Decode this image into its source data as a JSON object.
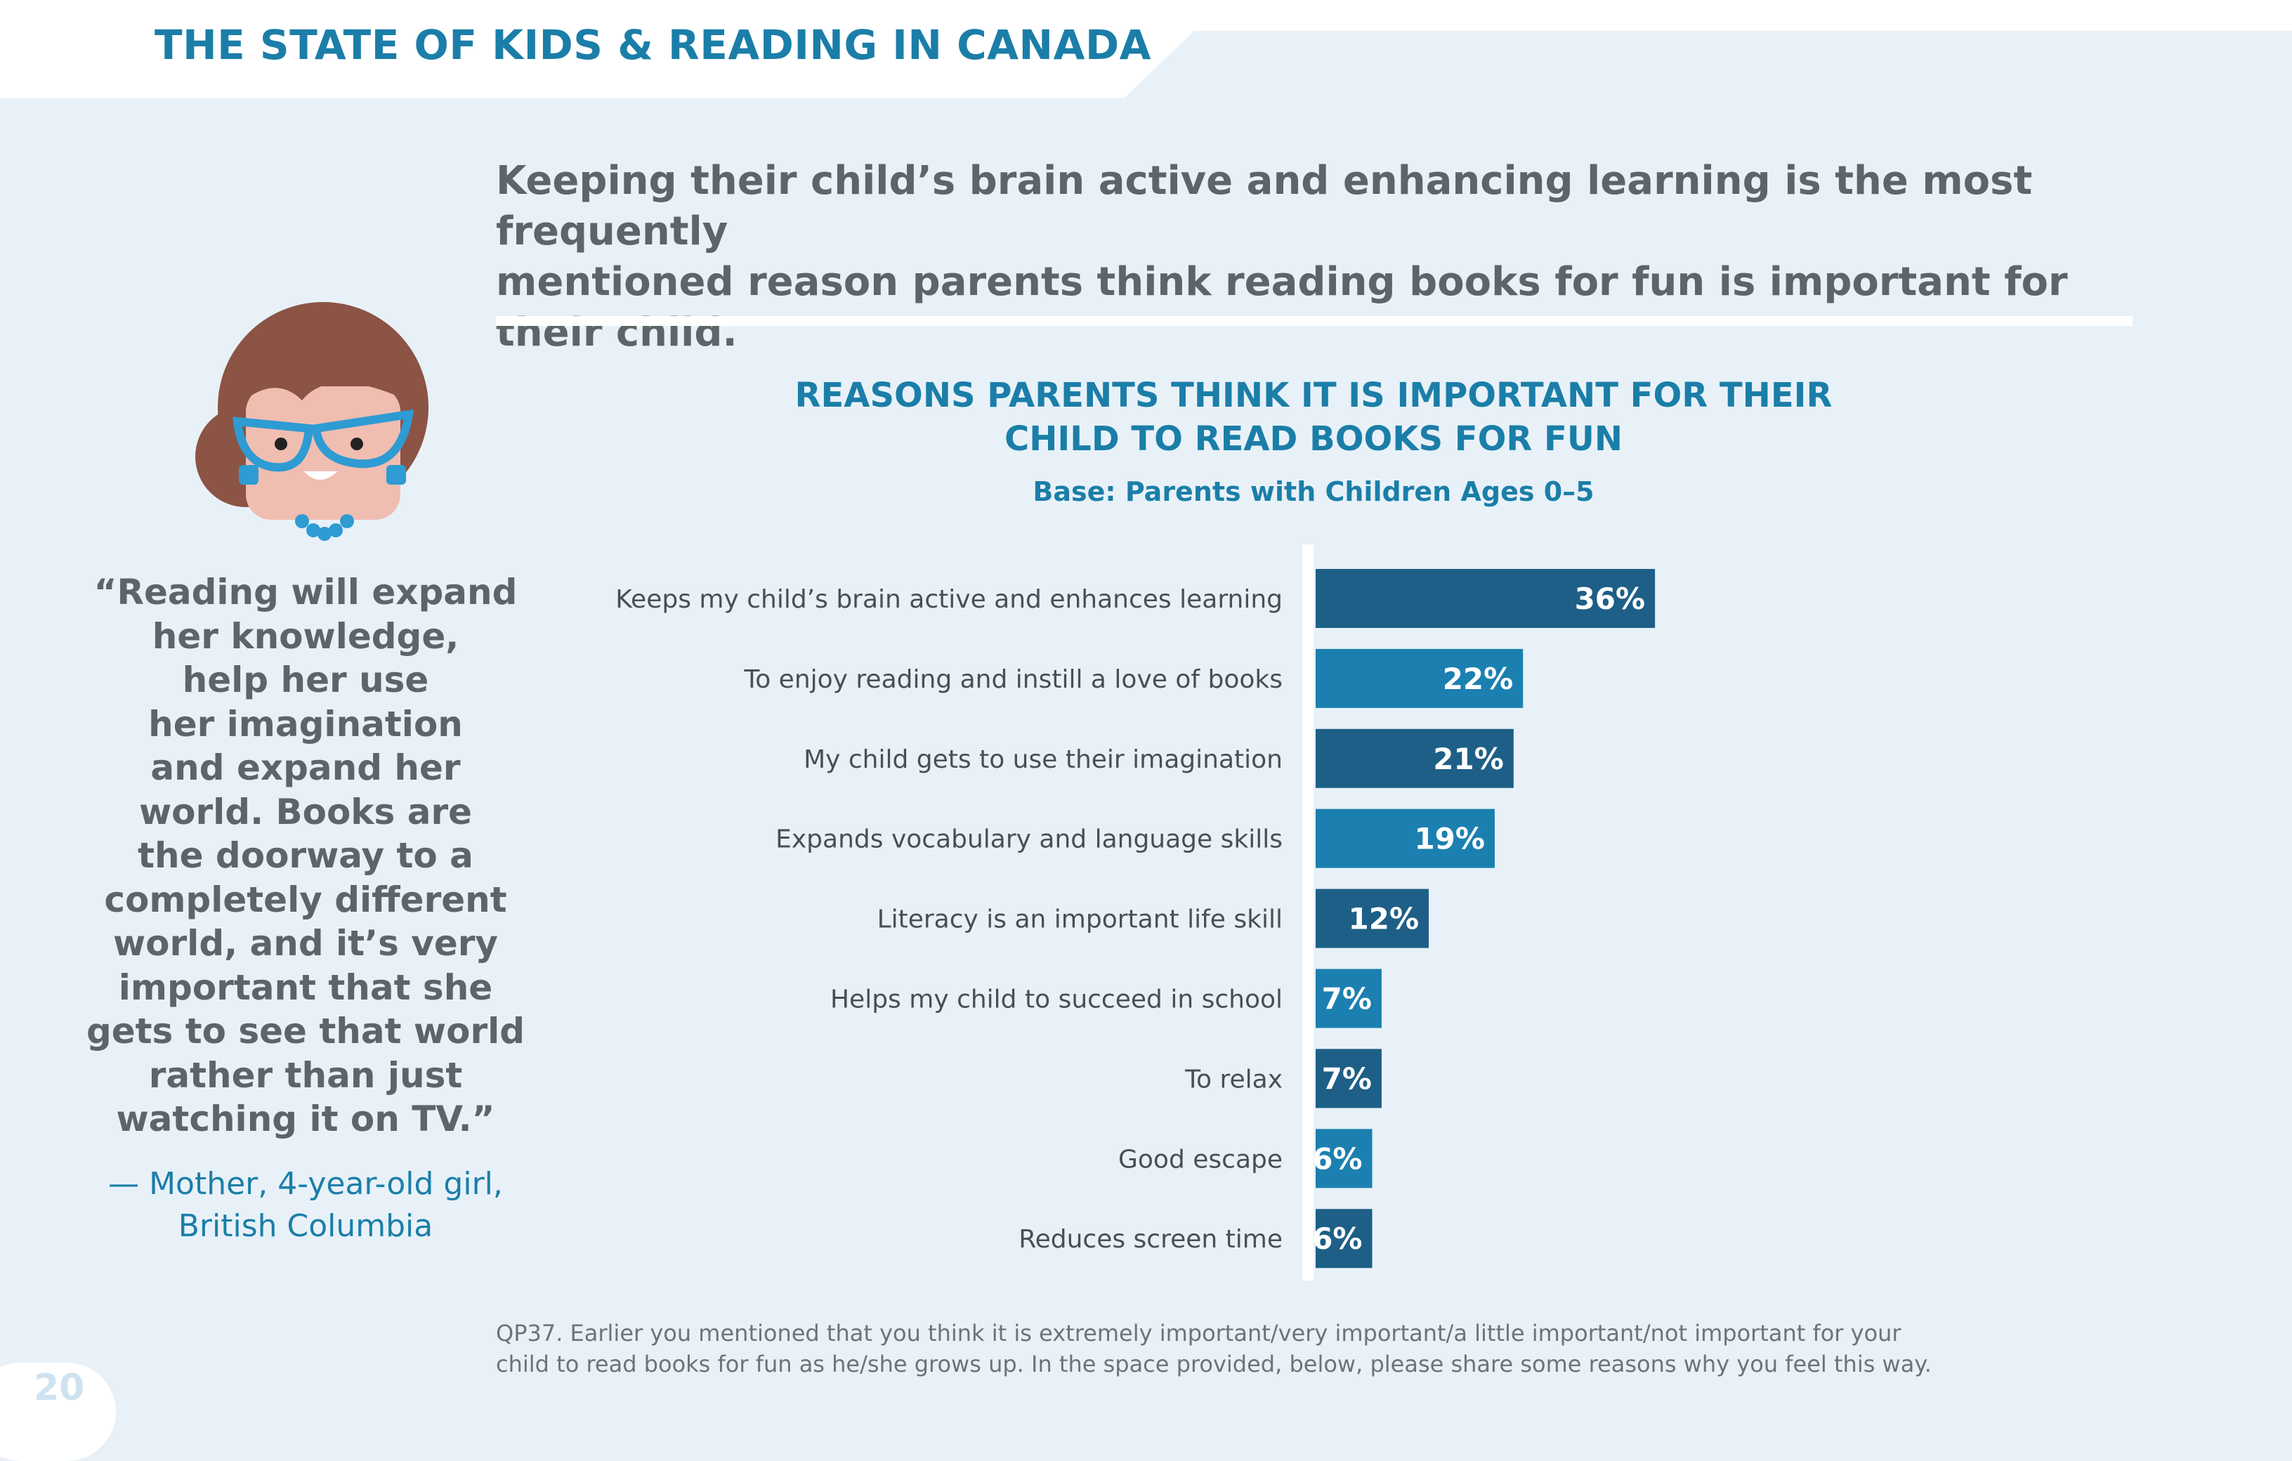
{
  "header": {
    "report_title": "THE STATE OF KIDS & READING IN CANADA"
  },
  "headline": {
    "line1": "Keeping their child’s brain active and enhancing learning is the most frequently",
    "line2": "mentioned reason parents think reading books for fun is important for their child."
  },
  "quote": {
    "lines": [
      "“Reading will expand",
      "her knowledge,",
      "help her use",
      "her imagination",
      "and expand her",
      "world. Books are",
      "the doorway to a",
      "completely different",
      "world, and it’s very",
      "important that she",
      "gets to see that world",
      "rather than just",
      "watching it on TV.”"
    ],
    "attribution_line1": "— Mother, 4-year-old girl,",
    "attribution_line2": "British Columbia"
  },
  "chart_data": {
    "type": "bar",
    "orientation": "horizontal",
    "title_line1": "REASONS PARENTS THINK IT IS IMPORTANT FOR THEIR",
    "title_line2": "CHILD TO READ BOOKS FOR FUN",
    "subtitle": "Base: Parents with Children Ages 0–5",
    "categories": [
      "Keeps my child’s brain active and enhances learning",
      "To enjoy reading and instill a love of books",
      "My child gets to use their imagination",
      "Expands vocabulary and language skills",
      "Literacy is an important life skill",
      "Helps my child to succeed in school",
      "To relax",
      "Good escape",
      "Reduces screen time"
    ],
    "values": [
      36,
      22,
      21,
      19,
      12,
      7,
      7,
      6,
      6
    ],
    "data_labels": [
      "36%",
      "22%",
      "21%",
      "19%",
      "12%",
      "7%",
      "7%",
      "6%",
      "6%"
    ],
    "unit": "%",
    "colors": [
      "#1d5f86",
      "#1b80b0"
    ],
    "grid": false,
    "legend": "none"
  },
  "footnote": {
    "line1": "QP37. Earlier you mentioned that you think it is extremely important/very important/a little important/not important for your",
    "line2": "child to read books for fun as he/she grows up. In the space provided, below, please share some reasons why you feel this way."
  },
  "page": {
    "number": "20"
  }
}
